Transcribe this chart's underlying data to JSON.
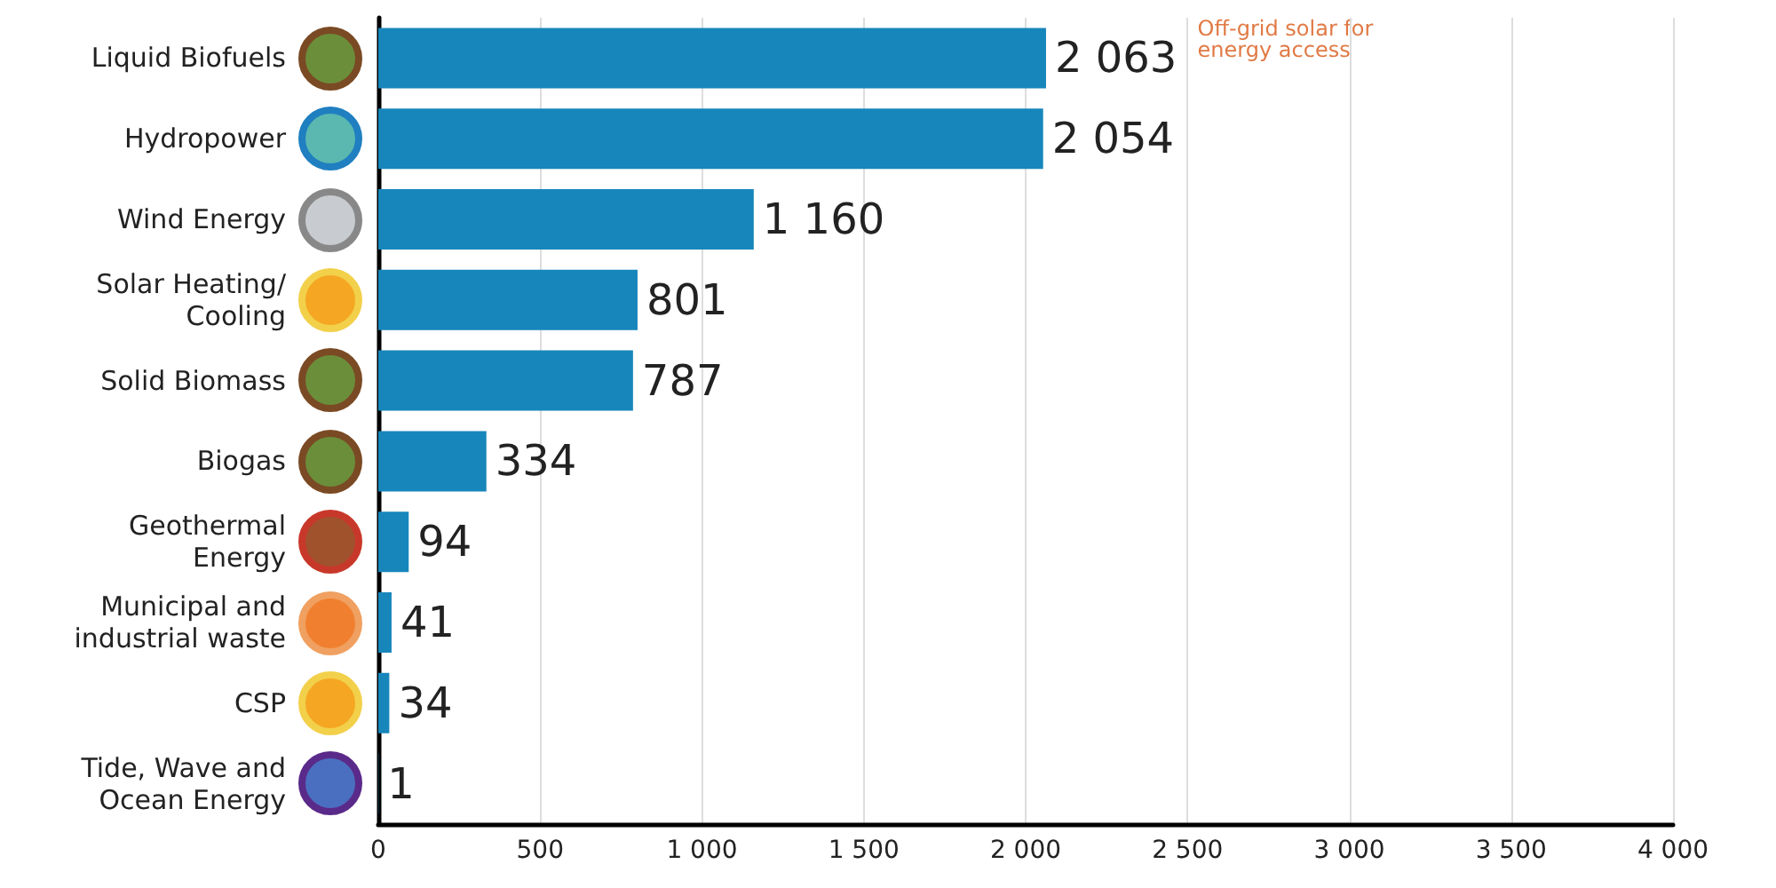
{
  "chart_data": {
    "type": "bar",
    "orientation": "horizontal",
    "categories": [
      "Liquid Biofuels",
      "Hydropower",
      "Wind Energy",
      "Solar Heating/\nCooling",
      "Solid Biomass",
      "Biogas",
      "Geothermal\nEnergy",
      "Municipal and\nindustrial waste",
      "CSP",
      "Tide, Wave and\nOcean Energy"
    ],
    "values": [
      2063,
      2054,
      1160,
      801,
      787,
      334,
      94,
      41,
      34,
      1
    ],
    "value_labels": [
      "2 063",
      "2 054",
      "1 160",
      "801",
      "787",
      "334",
      "94",
      "41",
      "34",
      "1"
    ],
    "color": "#1786bb",
    "xlim": [
      0,
      4000
    ],
    "xticks": [
      0,
      {
        "value": 500,
        "label": "500"
      },
      {
        "value": 1000,
        "label": "1 000"
      },
      {
        "value": 1500,
        "label": "1 500"
      },
      {
        "value": 2000,
        "label": "2 000"
      },
      {
        "value": 2500,
        "label": "2 500"
      },
      {
        "value": 3000,
        "label": "3 000"
      },
      {
        "value": 3500,
        "label": "3 500"
      },
      {
        "value": 4000,
        "label": "4 000"
      }
    ],
    "grid": "x",
    "annotations": [
      "Off-grid solar for energy access"
    ]
  }
}
